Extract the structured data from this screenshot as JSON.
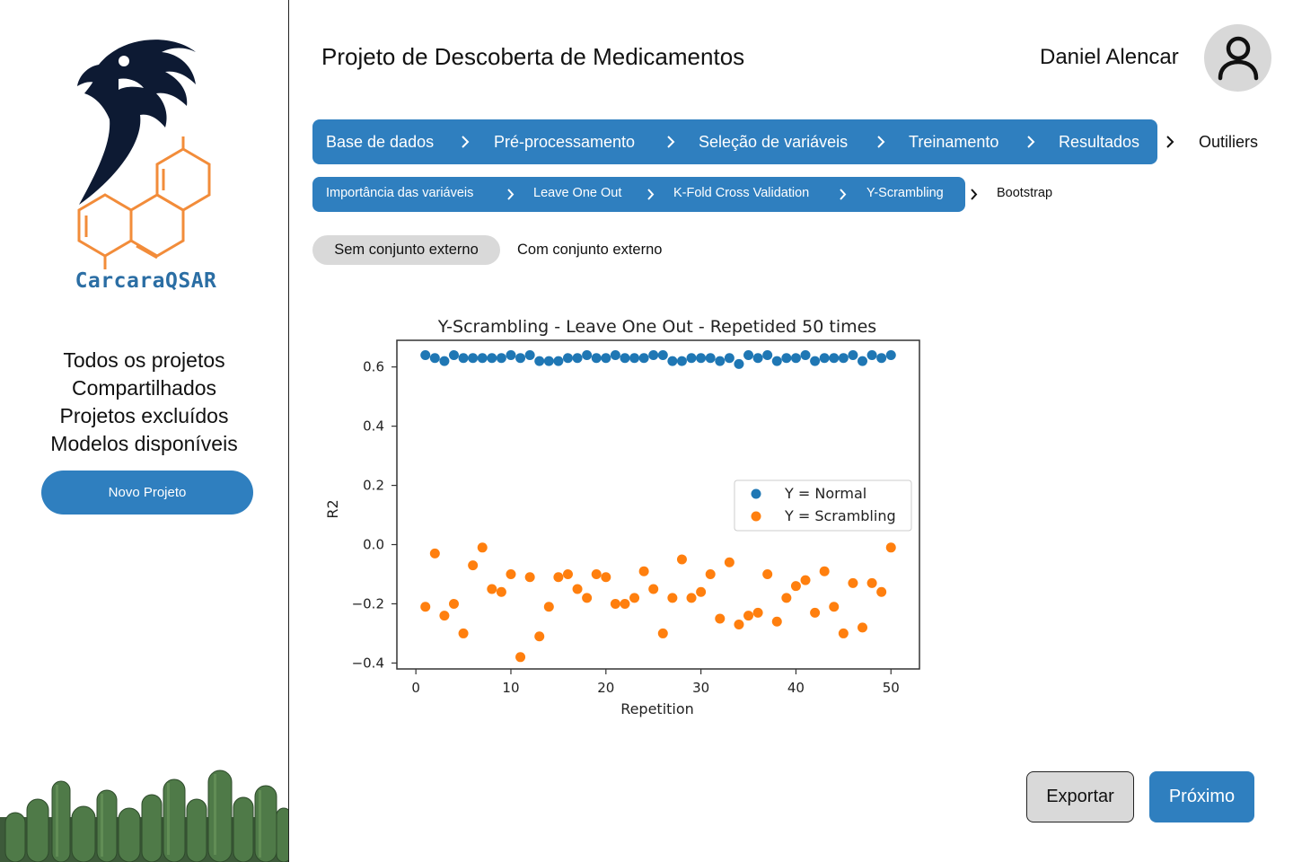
{
  "sidebar": {
    "logo_text": "CarcaraQSAR",
    "nav": [
      "Todos os projetos",
      "Compartilhados",
      "Projetos excluídos",
      "Modelos disponíveis"
    ],
    "new_project_label": "Novo Projeto"
  },
  "header": {
    "title": "Projeto de Descoberta de Medicamentos",
    "user_name": "Daniel Alencar",
    "avatar_icon": "user-icon"
  },
  "breadcrumb_main": {
    "steps": [
      "Base de dados",
      "Pré-processamento",
      "Seleção de variáveis",
      "Treinamento",
      "Resultados"
    ],
    "next": "Outiliers"
  },
  "breadcrumb_results": {
    "steps": [
      "Importância das variáveis",
      "Leave One Out",
      "K-Fold Cross Validation",
      "Y-Scrambling"
    ],
    "next": "Bootstrap"
  },
  "toggle": {
    "active": "Sem conjunto externo",
    "inactive": "Com conjunto externo"
  },
  "chart_data": {
    "type": "scatter",
    "title": "Y-Scrambling - Leave One Out - Repetided 50 times",
    "xlabel": "Repetition",
    "ylabel": "R2",
    "xlim": [
      -2,
      53
    ],
    "ylim": [
      -0.42,
      0.69
    ],
    "xticks": [
      0,
      10,
      20,
      30,
      40,
      50
    ],
    "xtick_labels": [
      "0",
      "10",
      "20",
      "30",
      "40",
      "50"
    ],
    "yticks": [
      0.6,
      0.4,
      0.2,
      0.0,
      -0.2,
      -0.4
    ],
    "ytick_labels": [
      "0.6",
      "0.4",
      "0.2",
      "0.0",
      "−0.2",
      "−0.4"
    ],
    "legend_position": "center-right",
    "grid": false,
    "x": [
      1,
      2,
      3,
      4,
      5,
      6,
      7,
      8,
      9,
      10,
      11,
      12,
      13,
      14,
      15,
      16,
      17,
      18,
      19,
      20,
      21,
      22,
      23,
      24,
      25,
      26,
      27,
      28,
      29,
      30,
      31,
      32,
      33,
      34,
      35,
      36,
      37,
      38,
      39,
      40,
      41,
      42,
      43,
      44,
      45,
      46,
      47,
      48,
      49,
      50
    ],
    "series": [
      {
        "name": "Y = Normal",
        "color": "#1f77b4",
        "values": [
          0.64,
          0.63,
          0.62,
          0.64,
          0.63,
          0.63,
          0.63,
          0.63,
          0.63,
          0.64,
          0.63,
          0.64,
          0.62,
          0.62,
          0.62,
          0.63,
          0.63,
          0.64,
          0.63,
          0.63,
          0.64,
          0.63,
          0.63,
          0.63,
          0.64,
          0.64,
          0.62,
          0.62,
          0.63,
          0.63,
          0.63,
          0.62,
          0.63,
          0.61,
          0.64,
          0.63,
          0.64,
          0.62,
          0.63,
          0.63,
          0.64,
          0.62,
          0.63,
          0.63,
          0.63,
          0.64,
          0.62,
          0.64,
          0.63,
          0.64
        ]
      },
      {
        "name": "Y = Scrambling",
        "color": "#ff7f0e",
        "values": [
          -0.21,
          -0.03,
          -0.24,
          -0.2,
          -0.3,
          -0.07,
          -0.01,
          -0.15,
          -0.16,
          -0.1,
          -0.38,
          -0.11,
          -0.31,
          -0.21,
          -0.11,
          -0.1,
          -0.15,
          -0.18,
          -0.1,
          -0.11,
          -0.2,
          -0.2,
          -0.18,
          -0.09,
          -0.15,
          -0.3,
          -0.18,
          -0.05,
          -0.18,
          -0.16,
          -0.1,
          -0.25,
          -0.06,
          -0.27,
          -0.24,
          -0.23,
          -0.1,
          -0.26,
          -0.18,
          -0.14,
          -0.12,
          -0.23,
          -0.09,
          -0.21,
          -0.3,
          -0.13,
          -0.28,
          -0.13,
          -0.16,
          -0.01
        ]
      }
    ]
  },
  "buttons": {
    "export": "Exportar",
    "next": "Próximo"
  }
}
